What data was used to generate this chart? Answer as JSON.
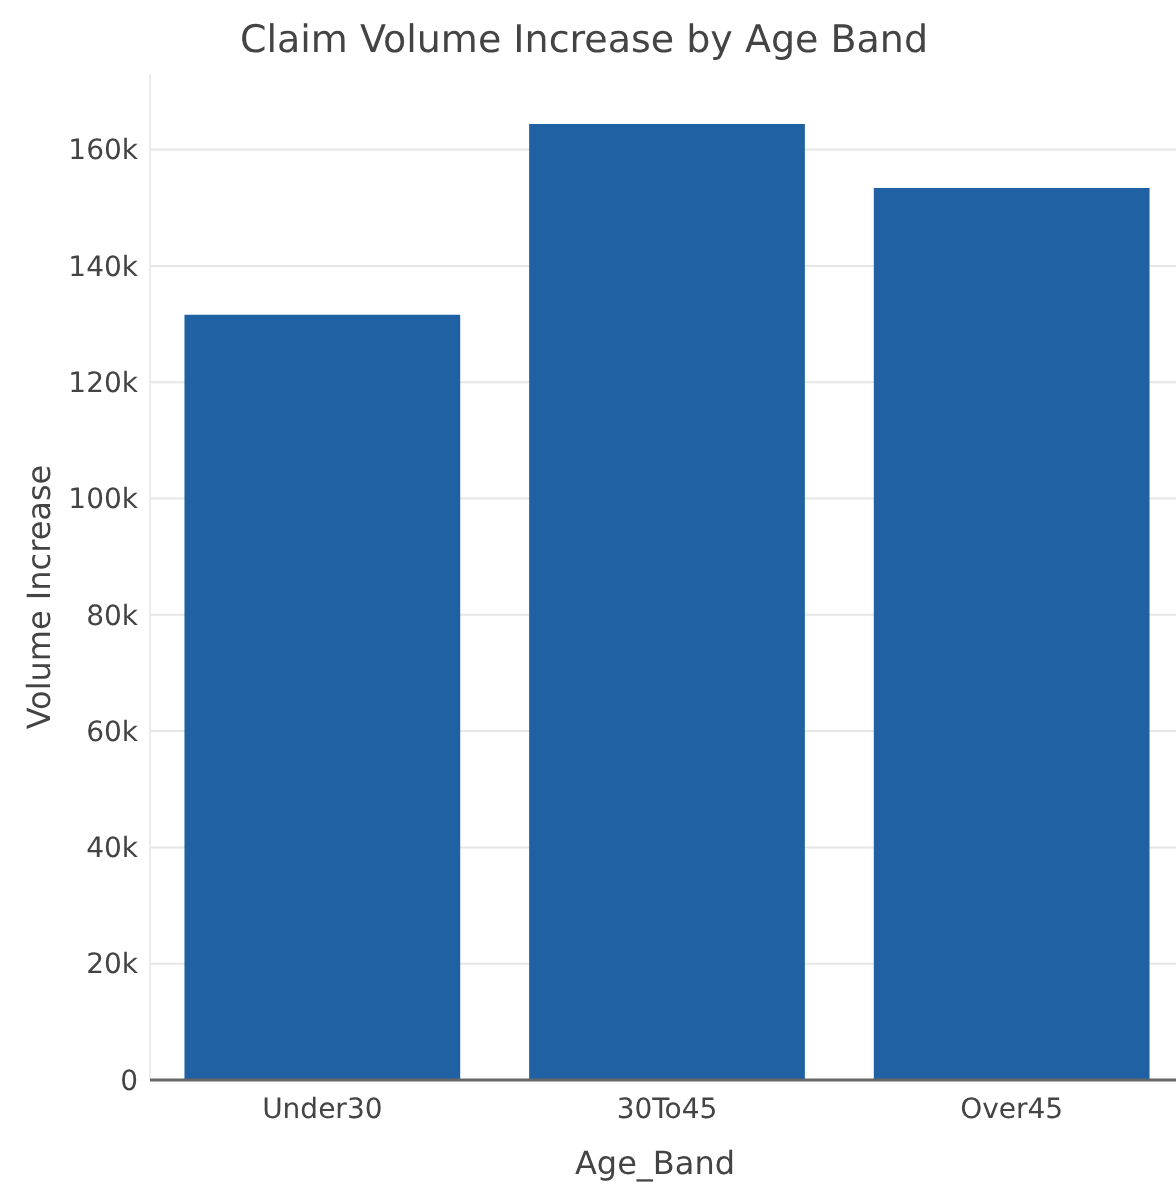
{
  "chart_data": {
    "type": "bar",
    "title": "Claim Volume Increase by Age Band",
    "xlabel": "Age_Band",
    "ylabel": "Volume Increase",
    "categories": [
      "Under30",
      "30To45",
      "Over45"
    ],
    "values": [
      131600,
      164400,
      153400
    ],
    "color": "#1f61a3",
    "yticks": [
      0,
      {
        "value": 20000,
        "label": "20k"
      },
      {
        "value": 40000,
        "label": "40k"
      },
      {
        "value": 60000,
        "label": "60k"
      },
      {
        "value": 80000,
        "label": "80k"
      },
      {
        "value": 100000,
        "label": "100k"
      },
      {
        "value": 120000,
        "label": "120k"
      },
      {
        "value": 140000,
        "label": "140k"
      },
      {
        "value": 160000,
        "label": "160k"
      }
    ],
    "ylim": [
      0,
      173000
    ],
    "grid": "y"
  }
}
